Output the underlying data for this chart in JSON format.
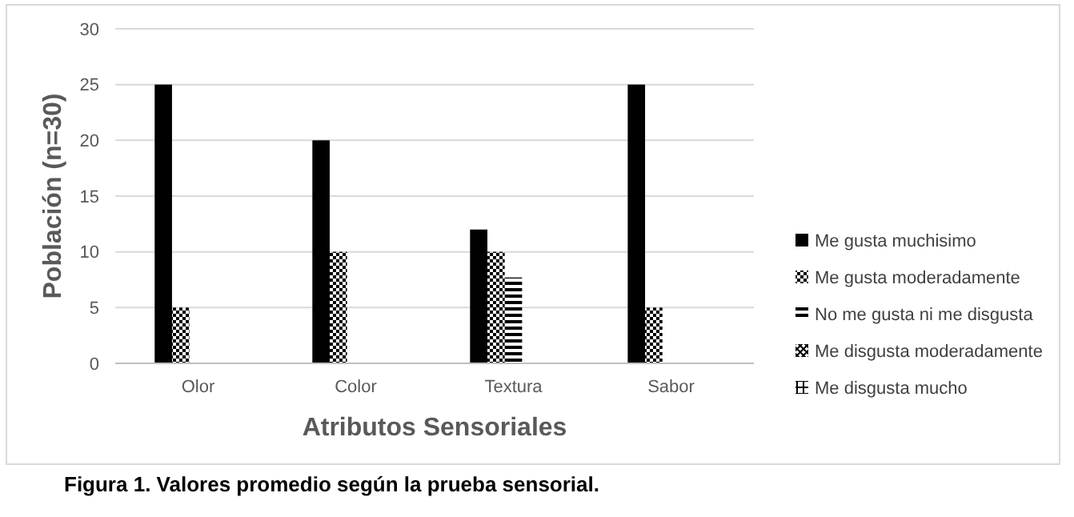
{
  "chart_data": {
    "type": "bar",
    "xlabel": "Atributos  Sensoriales",
    "ylabel": "Población (n=30)",
    "categories": [
      "Olor",
      "Color",
      "Textura",
      "Sabor"
    ],
    "series": [
      {
        "name": "Me gusta muchisimo",
        "color": "#000000",
        "values": [
          25,
          20,
          12,
          25
        ]
      },
      {
        "name": "Me gusta moderadamente",
        "color": "#000000",
        "values": [
          5,
          10,
          10,
          5
        ]
      },
      {
        "name": "No me gusta ni me disgusta",
        "color": "#000000",
        "values": [
          0,
          0,
          7.7,
          0
        ]
      },
      {
        "name": "Me disgusta moderadamente",
        "color": "#000000",
        "values": [
          0,
          0,
          0,
          0
        ]
      },
      {
        "name": "Me disgusta mucho",
        "color": "#000000",
        "values": [
          0,
          0,
          0,
          0
        ]
      }
    ],
    "ylim": [
      0,
      30
    ],
    "yticks": [
      0,
      5,
      10,
      15,
      20,
      25,
      30
    ],
    "grid": "y",
    "legend": "right",
    "annotations": [
      "Figura 1. Valores promedio según la prueba sensorial."
    ]
  }
}
